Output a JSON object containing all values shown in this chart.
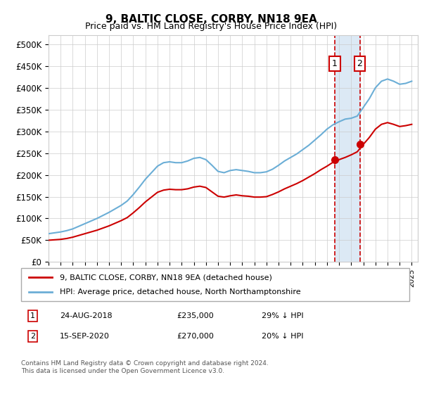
{
  "title": "9, BALTIC CLOSE, CORBY, NN18 9EA",
  "subtitle": "Price paid vs. HM Land Registry's House Price Index (HPI)",
  "hpi_label": "HPI: Average price, detached house, North Northamptonshire",
  "price_label": "9, BALTIC CLOSE, CORBY, NN18 9EA (detached house)",
  "hpi_color": "#6baed6",
  "price_color": "#cc0000",
  "marker_color": "#cc0000",
  "annotation_bg": "#dce9f5",
  "annotation_border": "#cc0000",
  "transaction1_date": 2018.65,
  "transaction1_price": 235000,
  "transaction1_label": "1",
  "transaction2_date": 2020.71,
  "transaction2_price": 270000,
  "transaction2_label": "2",
  "ylim_min": 0,
  "ylim_max": 520000,
  "yticks": [
    0,
    50000,
    100000,
    150000,
    200000,
    250000,
    300000,
    350000,
    400000,
    450000,
    500000
  ],
  "ytick_labels": [
    "£0",
    "£50K",
    "£100K",
    "£150K",
    "£200K",
    "£250K",
    "£300K",
    "£350K",
    "£400K",
    "£450K",
    "£500K"
  ],
  "footer": "Contains HM Land Registry data © Crown copyright and database right 2024.\nThis data is licensed under the Open Government Licence v3.0.",
  "legend_entry1": "9, BALTIC CLOSE, CORBY, NN18 9EA (detached house)",
  "legend_entry2": "HPI: Average price, detached house, North Northamptonshire",
  "table_row1": "1    24-AUG-2018         £235,000        29% ↓ HPI",
  "table_row2": "2    15-SEP-2020         £270,000        20% ↓ HPI"
}
